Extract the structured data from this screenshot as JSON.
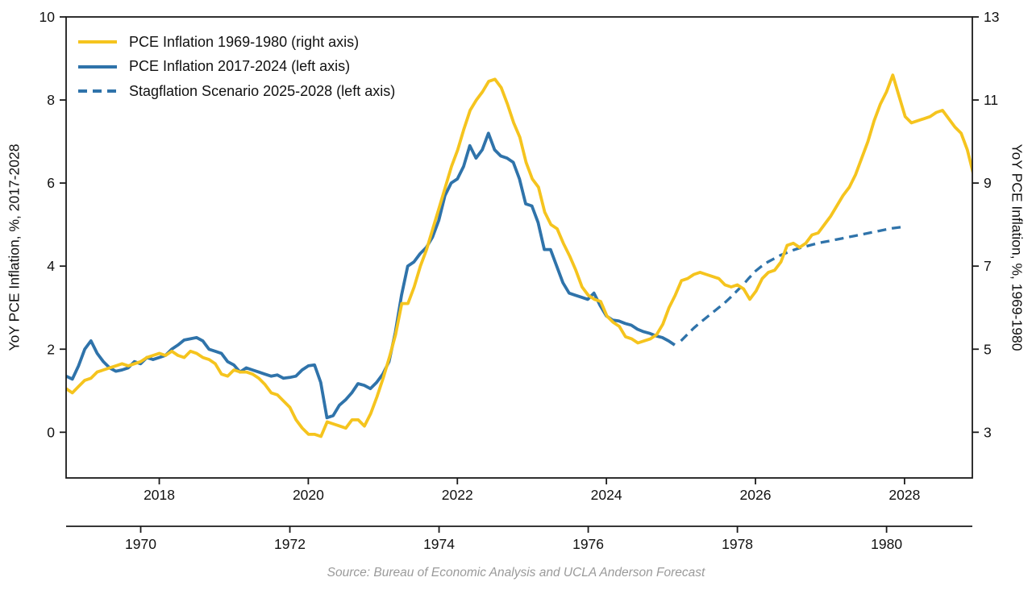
{
  "chart_data": {
    "type": "line",
    "source_note": "Source: Bureau of Economic Analysis and UCLA Anderson Forecast",
    "left_axis": {
      "label": "YoY PCE Inflation, %, 2017-2028",
      "ticks": [
        0,
        2,
        4,
        6,
        8,
        10
      ],
      "range": [
        -1.1,
        10
      ]
    },
    "right_axis": {
      "label": "YoY PCE Inflation, %, 1969-1980",
      "ticks": [
        3,
        5,
        7,
        9,
        11,
        13
      ],
      "range": [
        1.9,
        13
      ]
    },
    "x_axis_modern": {
      "ticks": [
        2018,
        2020,
        2022,
        2024,
        2026,
        2028
      ],
      "range": [
        2016.75,
        2028.91
      ]
    },
    "x_axis_historic": {
      "ticks": [
        1970,
        1972,
        1974,
        1976,
        1978,
        1980
      ],
      "range": [
        1969.0,
        1981.15
      ]
    },
    "colors": {
      "yellow": "#F5C41E",
      "blue": "#2F73AA",
      "axis": "#1a1a1a",
      "source_gray": "#9a9a9a"
    },
    "legend": [
      {
        "label": "PCE Inflation 1969-1980 (right axis)",
        "color": "#F5C41E",
        "style": "solid"
      },
      {
        "label": "PCE Inflation 2017-2024 (left axis)",
        "color": "#2F73AA",
        "style": "solid"
      },
      {
        "label": "Stagflation Scenario 2025-2028 (left axis)",
        "color": "#2F73AA",
        "style": "dashed"
      }
    ],
    "series": [
      {
        "name": "pce-inflation-2017-2024",
        "axis": "left",
        "x_axis": "modern",
        "style": "solid",
        "color": "#2F73AA",
        "start_year": 2016.75,
        "step_years": 0.0833333,
        "values": [
          1.35,
          1.28,
          1.6,
          2.0,
          2.2,
          1.9,
          1.7,
          1.55,
          1.47,
          1.5,
          1.55,
          1.7,
          1.65,
          1.8,
          1.75,
          1.8,
          1.85,
          2.0,
          2.1,
          2.22,
          2.25,
          2.28,
          2.2,
          2.0,
          1.95,
          1.9,
          1.7,
          1.62,
          1.45,
          1.55,
          1.5,
          1.45,
          1.4,
          1.35,
          1.38,
          1.3,
          1.32,
          1.35,
          1.5,
          1.6,
          1.62,
          1.2,
          0.35,
          0.4,
          0.65,
          0.78,
          0.95,
          1.17,
          1.13,
          1.05,
          1.2,
          1.4,
          1.7,
          2.4,
          3.3,
          4.0,
          4.1,
          4.3,
          4.45,
          4.7,
          5.1,
          5.7,
          6.0,
          6.1,
          6.4,
          6.9,
          6.6,
          6.8,
          7.2,
          6.8,
          6.65,
          6.6,
          6.5,
          6.1,
          5.5,
          5.45,
          5.05,
          4.4,
          4.4,
          4.0,
          3.6,
          3.35,
          3.3,
          3.25,
          3.2,
          3.35,
          3.05,
          2.8,
          2.7,
          2.68,
          2.62,
          2.58,
          2.48,
          2.42,
          2.38,
          2.32,
          2.28,
          2.2,
          2.1
        ]
      },
      {
        "name": "stagflation-scenario-2025-2028",
        "axis": "left",
        "x_axis": "modern",
        "style": "dashed",
        "color": "#2F73AA",
        "start_year": 2025.0,
        "step_years": 0.0833333,
        "values": [
          2.2,
          2.35,
          2.5,
          2.63,
          2.75,
          2.87,
          2.99,
          3.11,
          3.25,
          3.4,
          3.55,
          3.72,
          3.88,
          4.0,
          4.1,
          4.18,
          4.26,
          4.32,
          4.38,
          4.43,
          4.47,
          4.51,
          4.55,
          4.58,
          4.61,
          4.64,
          4.67,
          4.7,
          4.73,
          4.76,
          4.79,
          4.82,
          4.85,
          4.88,
          4.91,
          4.93,
          4.95
        ]
      },
      {
        "name": "pce-inflation-1969-1980",
        "axis": "right",
        "x_axis": "historic",
        "style": "solid",
        "color": "#F5C41E",
        "start_year": 1969.0,
        "step_years": 0.0833333,
        "values": [
          4.05,
          3.95,
          4.1,
          4.25,
          4.3,
          4.45,
          4.5,
          4.55,
          4.6,
          4.65,
          4.6,
          4.65,
          4.7,
          4.8,
          4.85,
          4.9,
          4.85,
          4.95,
          4.85,
          4.8,
          4.95,
          4.9,
          4.8,
          4.75,
          4.65,
          4.4,
          4.35,
          4.5,
          4.45,
          4.45,
          4.4,
          4.3,
          4.15,
          3.95,
          3.9,
          3.75,
          3.6,
          3.3,
          3.1,
          2.95,
          2.95,
          2.9,
          3.25,
          3.2,
          3.15,
          3.1,
          3.3,
          3.3,
          3.15,
          3.45,
          3.85,
          4.3,
          4.8,
          5.35,
          6.1,
          6.1,
          6.5,
          7.0,
          7.4,
          7.9,
          8.4,
          8.9,
          9.4,
          9.8,
          10.3,
          10.75,
          11.0,
          11.2,
          11.45,
          11.5,
          11.3,
          10.9,
          10.45,
          10.1,
          9.5,
          9.1,
          8.9,
          8.3,
          8.0,
          7.9,
          7.55,
          7.25,
          6.9,
          6.5,
          6.3,
          6.2,
          6.15,
          5.8,
          5.65,
          5.55,
          5.3,
          5.25,
          5.15,
          5.2,
          5.25,
          5.35,
          5.6,
          6.0,
          6.3,
          6.65,
          6.7,
          6.8,
          6.85,
          6.8,
          6.75,
          6.7,
          6.55,
          6.5,
          6.55,
          6.45,
          6.2,
          6.4,
          6.7,
          6.85,
          6.9,
          7.1,
          7.5,
          7.55,
          7.45,
          7.55,
          7.75,
          7.8,
          8.0,
          8.2,
          8.45,
          8.7,
          8.9,
          9.2,
          9.6,
          10.0,
          10.5,
          10.9,
          11.2,
          11.6,
          11.1,
          10.6,
          10.45,
          10.5,
          10.55,
          10.6,
          10.7,
          10.75,
          10.55,
          10.35,
          10.2,
          9.8,
          9.2
        ]
      }
    ]
  }
}
